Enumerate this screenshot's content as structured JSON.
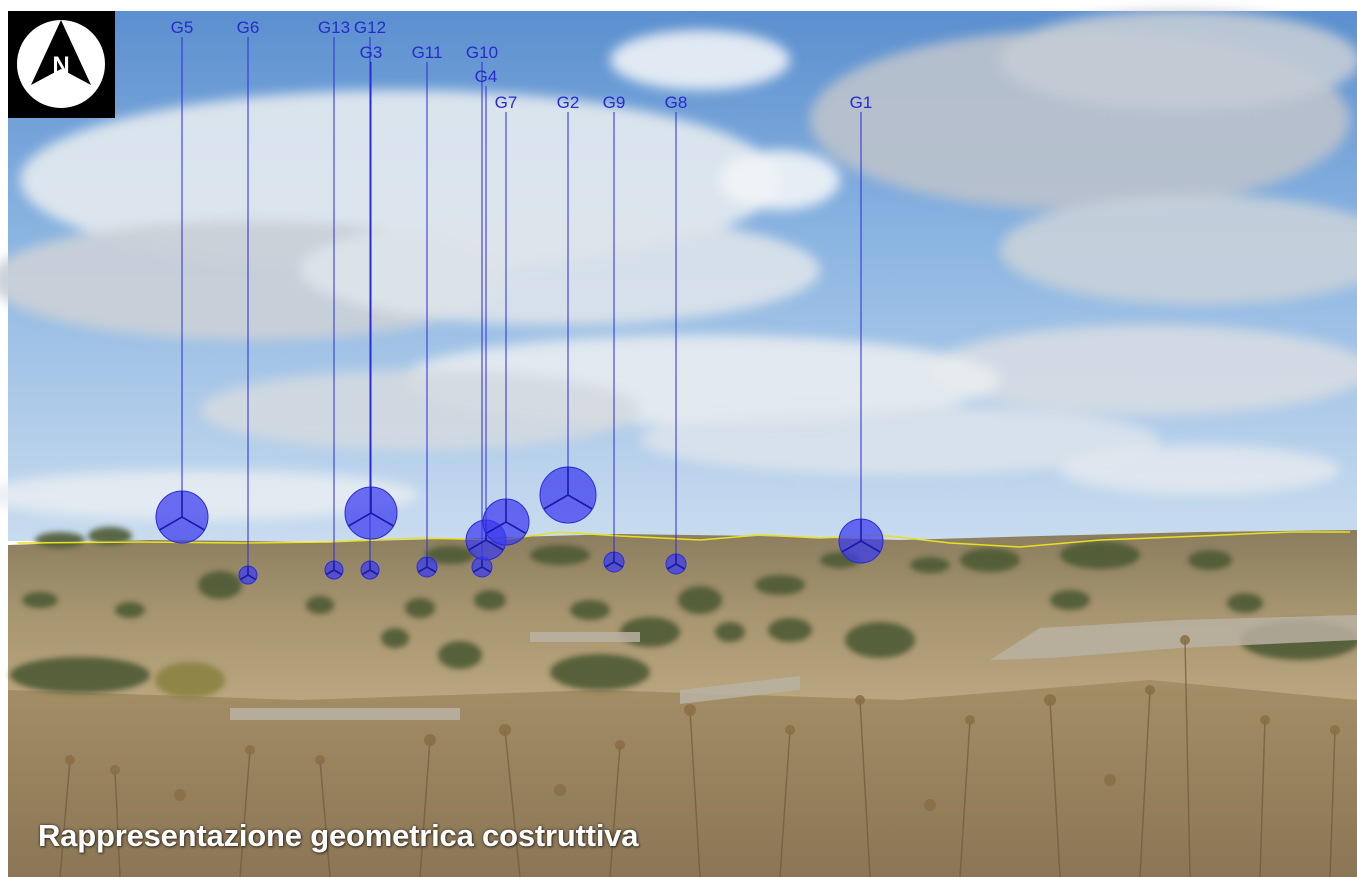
{
  "caption": "Rappresentazione geometrica costruttiva",
  "logo": {
    "letter": "N",
    "icon": "north-arrow-icon"
  },
  "colors": {
    "turbine": "#2b2bd6",
    "turbine_fill": "#3a3af0",
    "label": "#2a2acc",
    "horizon_line": "#e8e020"
  },
  "turbines": [
    {
      "label": "G5"
    },
    {
      "label": "G6"
    },
    {
      "label": "G13"
    },
    {
      "label": "G12"
    },
    {
      "label": "G3"
    },
    {
      "label": "G11"
    },
    {
      "label": "G10"
    },
    {
      "label": "G4"
    },
    {
      "label": "G7"
    },
    {
      "label": "G2"
    },
    {
      "label": "G9"
    },
    {
      "label": "G8"
    },
    {
      "label": "G1"
    }
  ]
}
